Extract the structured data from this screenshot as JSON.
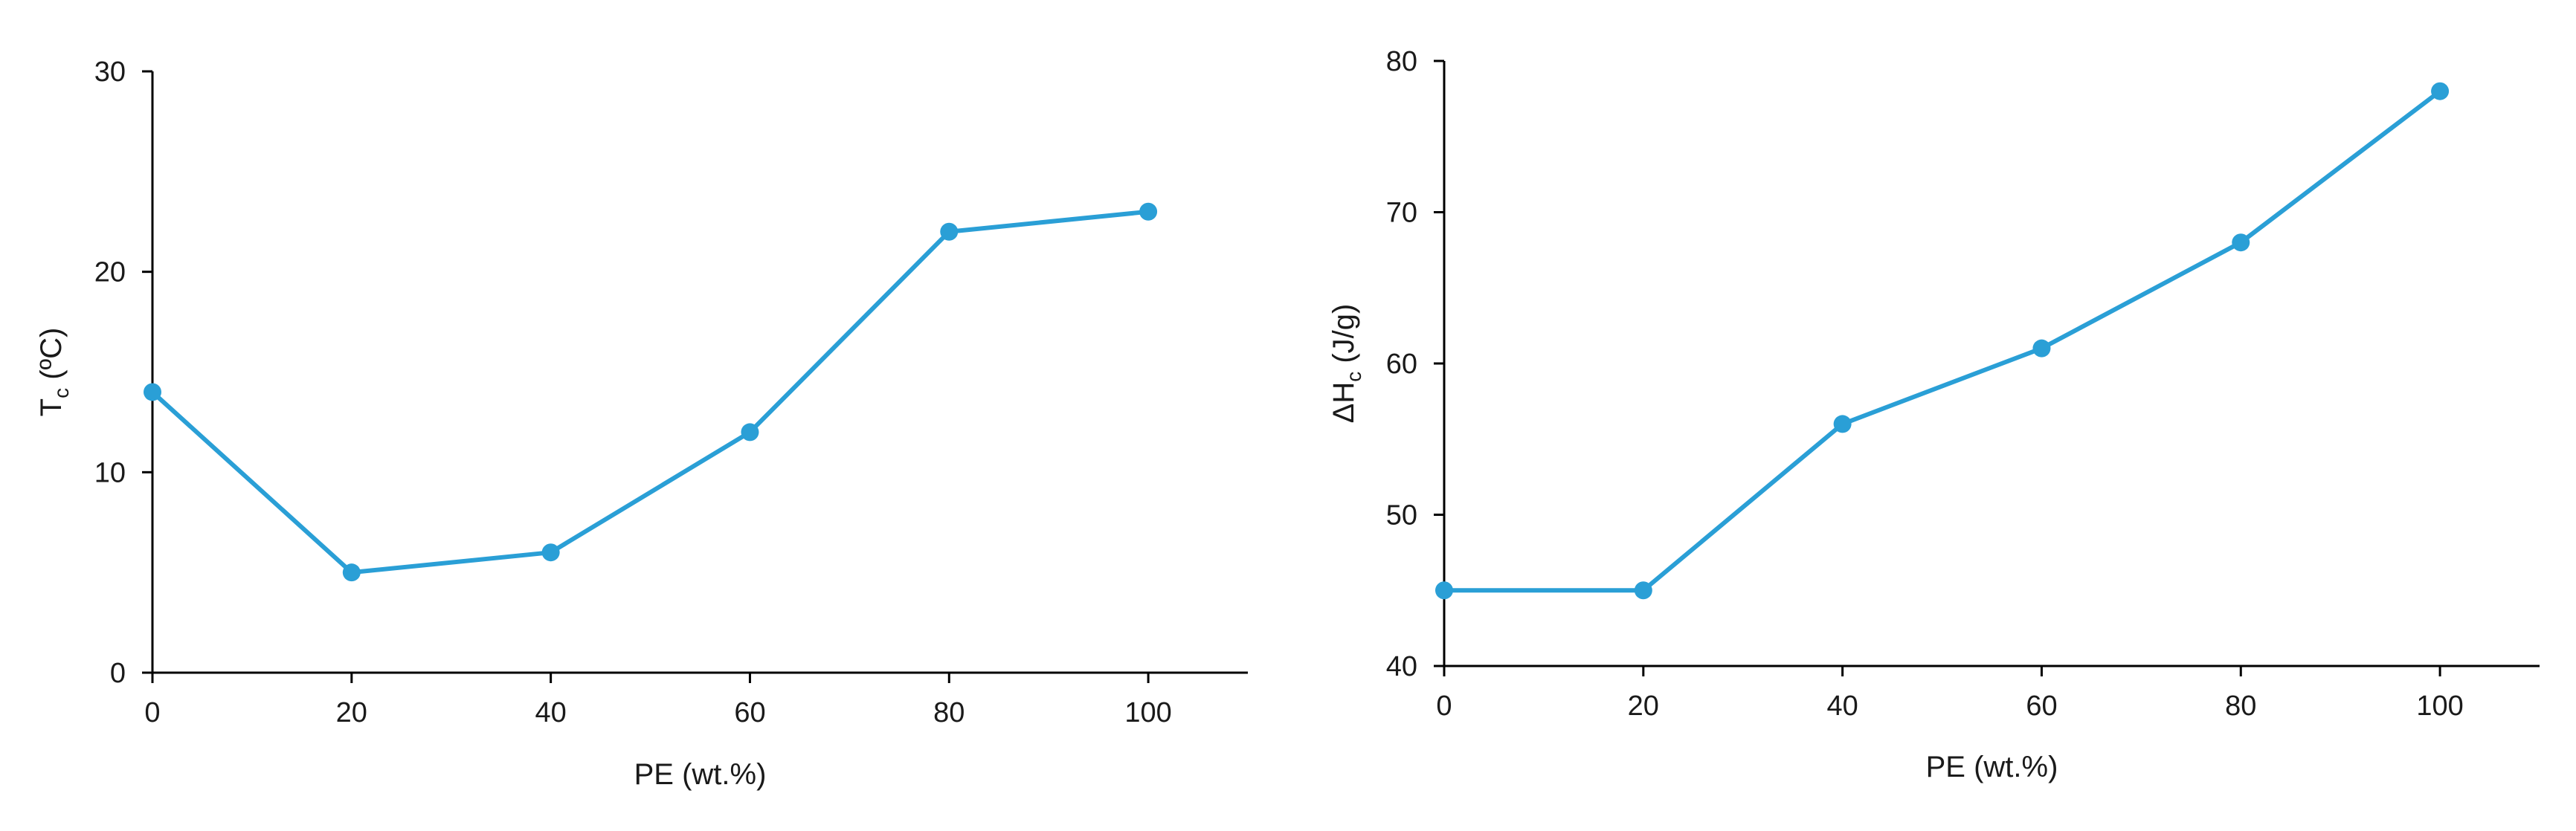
{
  "series_color": "#2a9fd6",
  "chart_data": [
    {
      "type": "line",
      "xlabel": "PE (wt.%)",
      "ylabel_main": "T",
      "ylabel_sub": "c",
      "ylabel_rest": " (ºC)",
      "xlim": [
        0,
        110
      ],
      "ylim": [
        0,
        30
      ],
      "xticks": [
        0,
        20,
        40,
        60,
        80,
        100
      ],
      "yticks": [
        0,
        10,
        20,
        30
      ],
      "grid": false,
      "x": [
        0,
        20,
        40,
        60,
        80,
        100
      ],
      "y": [
        14,
        5,
        6,
        12,
        22,
        23
      ]
    },
    {
      "type": "line",
      "xlabel": "PE (wt.%)",
      "ylabel_main": "ΔH",
      "ylabel_sub": "c",
      "ylabel_rest": " (J/g)",
      "xlim": [
        0,
        110
      ],
      "ylim": [
        40,
        80
      ],
      "xticks": [
        0,
        20,
        40,
        60,
        80,
        100
      ],
      "yticks": [
        40,
        50,
        60,
        70,
        80
      ],
      "grid": false,
      "x": [
        0,
        20,
        40,
        60,
        80,
        100
      ],
      "y": [
        45,
        45,
        56,
        61,
        68,
        78
      ]
    }
  ]
}
